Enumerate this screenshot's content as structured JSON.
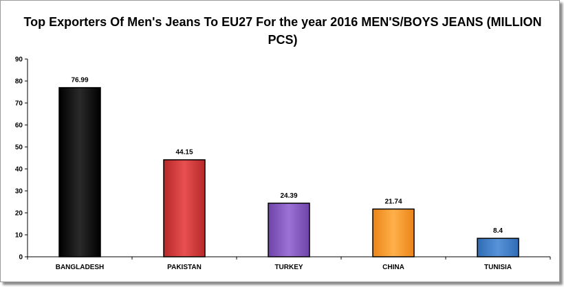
{
  "chart_data": {
    "type": "bar",
    "title": "Top Exporters Of Men's Jeans To EU27 For the year 2016 MEN'S/BOYS JEANS (MILLION PCS)",
    "categories": [
      "BANGLADESH",
      "PAKISTAN",
      "TURKEY",
      "CHINA",
      "TUNISIA"
    ],
    "values": [
      76.99,
      44.15,
      24.39,
      21.74,
      8.4
    ],
    "data_labels": [
      "76.99",
      "44.15",
      "24.39",
      "21.74",
      "8.4"
    ],
    "colors": [
      "#000000",
      "#d63a3a",
      "#8a5cc4",
      "#f79a2e",
      "#3f7ec7"
    ],
    "ylim": [
      0,
      90
    ],
    "yticks": [
      0,
      10,
      20,
      30,
      40,
      50,
      60,
      70,
      80,
      90
    ],
    "xlabel": "",
    "ylabel": "",
    "grid": false,
    "legend": "none"
  }
}
